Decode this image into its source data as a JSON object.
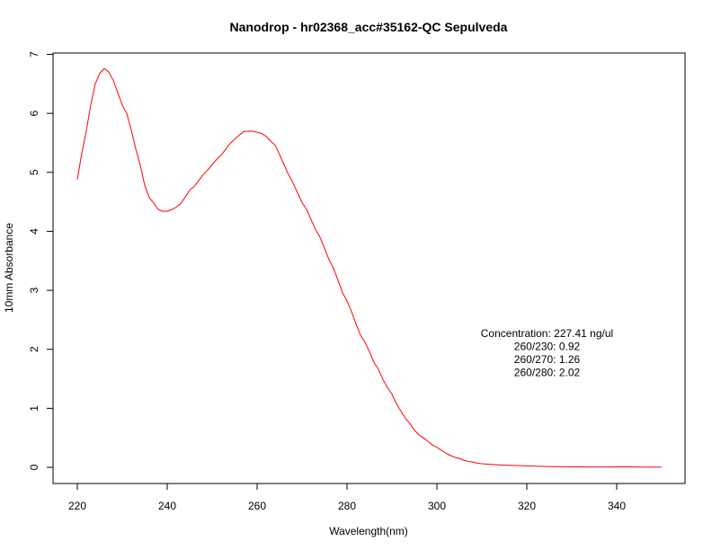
{
  "chart_data": {
    "type": "line",
    "title": "Nanodrop - hr02368_acc#35162-QC Sepulveda",
    "xlabel": "Wavelength(nm)",
    "ylabel": "10mm Absorbance",
    "xlim": [
      220,
      350
    ],
    "ylim": [
      0,
      7
    ],
    "xticks": [
      220,
      240,
      260,
      280,
      300,
      320,
      340
    ],
    "yticks": [
      0,
      1,
      2,
      3,
      4,
      5,
      6,
      7
    ],
    "grid": false,
    "series": [
      {
        "color": "#ff0000",
        "x": [
          220,
          221,
          222,
          223,
          224,
          225,
          226,
          227,
          228,
          229,
          230,
          231,
          232,
          233,
          234,
          235,
          236,
          237,
          238,
          239,
          240,
          241,
          242,
          243,
          244,
          245,
          246,
          247,
          248,
          249,
          250,
          251,
          252,
          253,
          254,
          255,
          256,
          257,
          258,
          259,
          260,
          261,
          262,
          263,
          264,
          265,
          266,
          267,
          268,
          269,
          270,
          271,
          272,
          273,
          274,
          275,
          276,
          277,
          278,
          279,
          280,
          281,
          282,
          283,
          284,
          285,
          286,
          287,
          288,
          289,
          290,
          291,
          292,
          293,
          294,
          295,
          296,
          297,
          298,
          299,
          300,
          301,
          302,
          303,
          304,
          305,
          306,
          307,
          308,
          309,
          310,
          312,
          314,
          316,
          318,
          320,
          322,
          324,
          326,
          328,
          330,
          332,
          334,
          336,
          338,
          340,
          342,
          344,
          346,
          348,
          350
        ],
        "y": [
          4.88,
          5.33,
          5.7,
          6.15,
          6.5,
          6.68,
          6.76,
          6.7,
          6.56,
          6.35,
          6.14,
          6.0,
          5.72,
          5.4,
          5.12,
          4.78,
          4.57,
          4.48,
          4.37,
          4.34,
          4.34,
          4.37,
          4.41,
          4.47,
          4.58,
          4.7,
          4.76,
          4.86,
          4.96,
          5.04,
          5.13,
          5.22,
          5.29,
          5.39,
          5.49,
          5.56,
          5.63,
          5.69,
          5.7,
          5.7,
          5.68,
          5.66,
          5.61,
          5.53,
          5.46,
          5.3,
          5.13,
          4.96,
          4.82,
          4.65,
          4.49,
          4.37,
          4.2,
          4.03,
          3.9,
          3.71,
          3.52,
          3.37,
          3.17,
          2.96,
          2.82,
          2.64,
          2.43,
          2.24,
          2.12,
          1.96,
          1.78,
          1.66,
          1.49,
          1.35,
          1.24,
          1.08,
          0.95,
          0.83,
          0.74,
          0.63,
          0.55,
          0.5,
          0.44,
          0.38,
          0.34,
          0.29,
          0.24,
          0.2,
          0.17,
          0.15,
          0.12,
          0.1,
          0.09,
          0.07,
          0.06,
          0.05,
          0.04,
          0.035,
          0.03,
          0.025,
          0.02,
          0.015,
          0.012,
          0.01,
          0.008,
          0.007,
          0.006,
          0.006,
          0.006,
          0.007,
          0.01,
          0.006,
          0.004,
          0.003,
          0.002
        ]
      }
    ],
    "annotations": [
      "Concentration: 227.41 ng/ul",
      "260/230: 0.92",
      "260/270: 1.26",
      "260/280: 2.02"
    ]
  }
}
